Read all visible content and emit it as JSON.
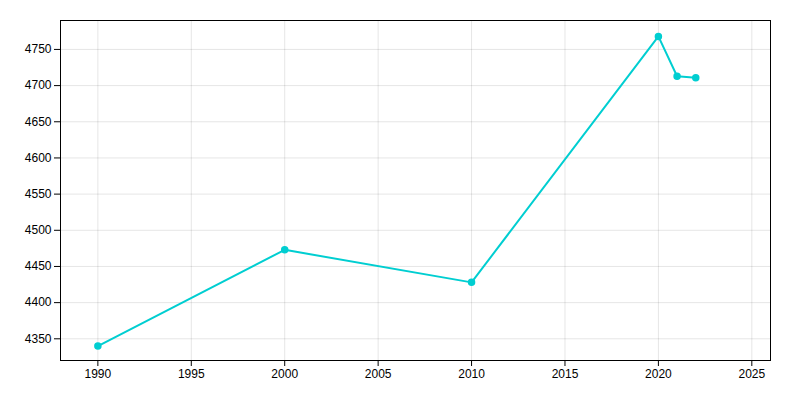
{
  "chart_data": {
    "type": "line",
    "x": [
      1990,
      2000,
      2010,
      2020,
      2021,
      2022
    ],
    "values": [
      4340,
      4473,
      4428,
      4768,
      4713,
      4711
    ],
    "color": "#00CED1",
    "marker": "circle",
    "xlim": [
      1988,
      2026
    ],
    "ylim": [
      4320,
      4790
    ],
    "xticks": [
      1990,
      1995,
      2000,
      2005,
      2010,
      2015,
      2020,
      2025
    ],
    "yticks": [
      4350,
      4400,
      4450,
      4500,
      4550,
      4600,
      4650,
      4700,
      4750
    ],
    "grid": true
  }
}
